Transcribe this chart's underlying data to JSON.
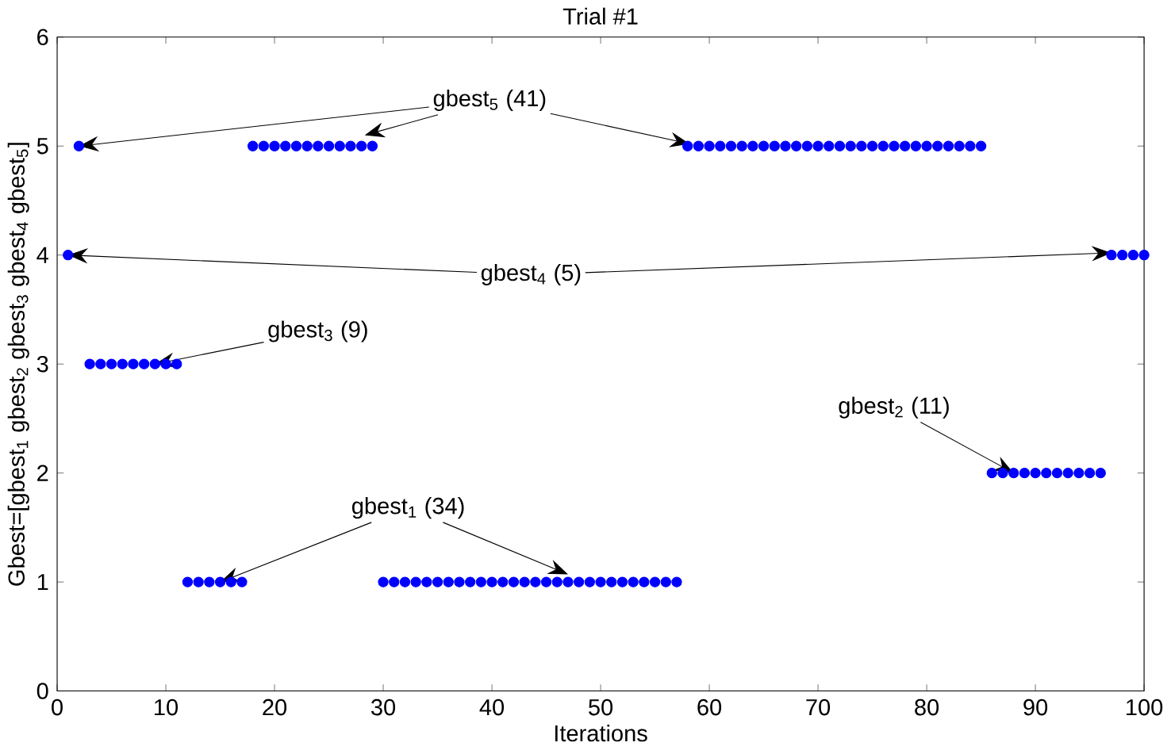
{
  "chart_data": {
    "type": "scatter",
    "title": "Trial #1",
    "xlabel": "Iterations",
    "ylabel": "Gbest=[gbest$_{1}$ gbest$_{2}$ gbest$_{3}$ gbest$_{4}$ gbest$_{5}$]",
    "x": [
      1,
      2,
      3,
      4,
      5,
      6,
      7,
      8,
      9,
      10,
      11,
      12,
      13,
      14,
      15,
      16,
      17,
      18,
      19,
      20,
      21,
      22,
      23,
      24,
      25,
      26,
      27,
      28,
      29,
      30,
      31,
      32,
      33,
      34,
      35,
      36,
      37,
      38,
      39,
      40,
      41,
      42,
      43,
      44,
      45,
      46,
      47,
      48,
      49,
      50,
      51,
      52,
      53,
      54,
      55,
      56,
      57,
      58,
      59,
      60,
      61,
      62,
      63,
      64,
      65,
      66,
      67,
      68,
      69,
      70,
      71,
      72,
      73,
      74,
      75,
      76,
      77,
      78,
      79,
      80,
      81,
      82,
      83,
      84,
      85,
      86,
      87,
      88,
      89,
      90,
      91,
      92,
      93,
      94,
      95,
      96,
      97,
      98,
      99,
      100
    ],
    "series": [
      {
        "color": "#0000ff",
        "values": [
          4,
          5,
          3,
          3,
          3,
          3,
          3,
          3,
          3,
          3,
          3,
          1,
          1,
          1,
          1,
          1,
          1,
          5,
          5,
          5,
          5,
          5,
          5,
          5,
          5,
          5,
          5,
          5,
          5,
          1,
          1,
          1,
          1,
          1,
          1,
          1,
          1,
          1,
          1,
          1,
          1,
          1,
          1,
          1,
          1,
          1,
          1,
          1,
          1,
          1,
          1,
          1,
          1,
          1,
          1,
          1,
          1,
          5,
          5,
          5,
          5,
          5,
          5,
          5,
          5,
          5,
          5,
          5,
          5,
          5,
          5,
          5,
          5,
          5,
          5,
          5,
          5,
          5,
          5,
          5,
          5,
          5,
          5,
          5,
          5,
          2,
          2,
          2,
          2,
          2,
          2,
          2,
          2,
          2,
          2,
          2,
          4,
          4,
          4,
          4
        ]
      }
    ],
    "marker": "circle",
    "grid": false,
    "xlim": [
      0,
      100
    ],
    "xticks": [
      0,
      10,
      20,
      30,
      40,
      50,
      60,
      70,
      80,
      90,
      100
    ],
    "ylim": [
      0,
      6
    ],
    "yticks": [
      0,
      1,
      2,
      3,
      4,
      5,
      6
    ],
    "annotations": [
      {
        "text": "gbest$_{5}$ (41)",
        "x": 2,
        "y": 5
      },
      {
        "text": "gbest$_{4}$ (5)",
        "x": 1,
        "y": 4
      },
      {
        "text": "gbest$_{3}$ (9)",
        "x": 9,
        "y": 3
      },
      {
        "text": "gbest$_{2}$ (11)",
        "x": 88,
        "y": 2
      },
      {
        "text": "gbest$_{1}$ (34)",
        "x": 15,
        "y": 1
      }
    ]
  }
}
